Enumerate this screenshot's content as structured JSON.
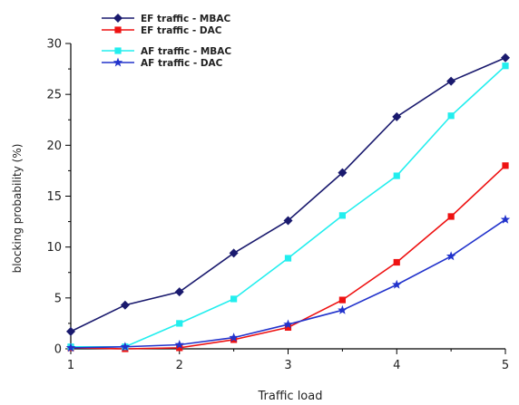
{
  "chart_data": {
    "type": "line",
    "title": "",
    "xlabel": "Traffic load",
    "ylabel": "blocking probability (%)",
    "xlim": [
      1,
      5
    ],
    "ylim": [
      0,
      30
    ],
    "x": [
      1,
      1.5,
      2,
      2.5,
      3,
      3.5,
      4,
      4.5,
      5
    ],
    "x_ticks": [
      1,
      2,
      3,
      4,
      5
    ],
    "y_ticks": [
      0,
      5,
      10,
      15,
      20,
      25,
      30
    ],
    "grid": false,
    "legend_position": "top-left",
    "series": [
      {
        "name": "EF traffic - MBAC",
        "color": "#1a1a6e",
        "marker": "diamond",
        "values": [
          1.7,
          4.3,
          5.6,
          9.4,
          12.6,
          17.3,
          22.8,
          26.3,
          28.6
        ]
      },
      {
        "name": "EF traffic - DAC",
        "color": "#ee1111",
        "marker": "square",
        "values": [
          0.1,
          0.0,
          0.1,
          0.9,
          2.1,
          4.8,
          8.5,
          13.0,
          18.0
        ]
      },
      {
        "name": "AF traffic - MBAC",
        "color": "#22eeee",
        "marker": "square",
        "values": [
          0.2,
          0.2,
          2.5,
          4.9,
          8.9,
          13.1,
          17.0,
          22.9,
          27.8
        ]
      },
      {
        "name": "AF traffic - DAC",
        "color": "#2233cc",
        "marker": "star",
        "values": [
          0.1,
          0.2,
          0.4,
          1.1,
          2.4,
          3.8,
          6.3,
          9.1,
          12.7
        ]
      }
    ]
  }
}
